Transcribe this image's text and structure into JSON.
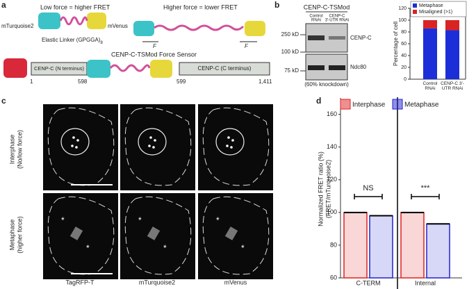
{
  "figure": {
    "panel_a": {
      "label": "a",
      "low_force": "Low force = higher FRET",
      "high_force": "Higher force = lower FRET",
      "donor": "mTurquoise2",
      "acceptor": "mVenus",
      "linker": "Elastic Linker (GPGGA)",
      "linker_subscript": "8",
      "force_left": "F",
      "force_right": "F",
      "sensor_title": "CENP-C-TSMod Force Sensor",
      "n_term": "CENP-C (N terminus)",
      "c_term": "CENP-C (C terminus)",
      "residues": [
        "1",
        "598",
        "599",
        "1,411"
      ]
    },
    "panel_b": {
      "label": "b",
      "blot_title": "CENP-C-TSMod",
      "lanes": [
        [
          "Control",
          "RNAi"
        ],
        [
          "CENP-C",
          "3'-UTR RNAi"
        ]
      ],
      "markers": [
        "250 kD",
        "100 kD",
        "75 kD"
      ],
      "bands": [
        "CENP-C",
        "Ndc80"
      ],
      "note": "(60% knockdown)"
    },
    "panel_c": {
      "label": "c",
      "rows": [
        [
          "Interphase",
          "(No/low force)"
        ],
        [
          "Metaphase",
          "(higher force)"
        ]
      ],
      "columns": [
        "TagRFP-T",
        "mTurquoise2",
        "mVenus"
      ],
      "asterisk": "*"
    },
    "panel_d": {
      "label": "d"
    }
  },
  "chart_data": [
    {
      "type": "bar",
      "stacked": true,
      "y_label": "Percentage of cell",
      "categories": [
        "Control RNAi",
        "CENP-C 3'-UTR RNAi"
      ],
      "series": [
        {
          "name": "Metaphase",
          "color": "#1c2ed8",
          "values": [
            86,
            83
          ]
        },
        {
          "name": "Misaligned (>1)",
          "color": "#d92424",
          "values": [
            14,
            17
          ]
        }
      ],
      "ylim": [
        0,
        120
      ],
      "yticks": [
        0,
        20,
        40,
        60,
        80,
        100,
        120
      ],
      "legend": "top-right"
    },
    {
      "type": "bar",
      "stacked": false,
      "y_label": [
        "Normalized FRET ratio (%)",
        "(FRET/mTurquoise2)"
      ],
      "categories": [
        "C-TERM",
        "Internal"
      ],
      "series": [
        {
          "name": "Interphase",
          "color": "#e02020",
          "values": [
            100,
            100
          ]
        },
        {
          "name": "Metaphase",
          "color": "#2020d0",
          "values": [
            98,
            93
          ]
        }
      ],
      "ylim": [
        60,
        170
      ],
      "yticks": [
        60,
        80,
        100,
        120,
        140,
        160
      ],
      "annotations": [
        "NS",
        "***"
      ],
      "legend": "top"
    }
  ]
}
